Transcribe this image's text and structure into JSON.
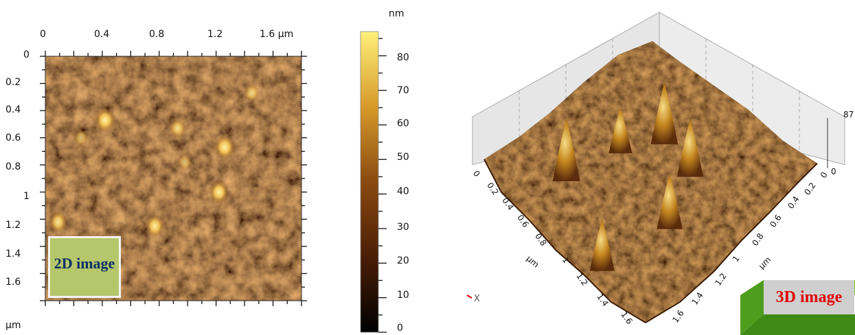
{
  "chart_data": [
    {
      "type": "heatmap",
      "label": "2D image",
      "x_ticks": [
        "0",
        "0.4",
        "0.8",
        "1.2",
        "1.6 µm"
      ],
      "y_ticks": [
        "0",
        "0.2",
        "0.4",
        "0.6",
        "0.8",
        "1",
        "1.2",
        "1.4",
        "1.6"
      ],
      "y_unit": "µm",
      "xlim": [
        0,
        1.8
      ],
      "ylim": [
        0,
        1.8
      ],
      "colorbar": {
        "unit": "nm",
        "ticks": [
          "0",
          "10",
          "20",
          "30",
          "40",
          "50",
          "60",
          "70",
          "80"
        ],
        "range": [
          0,
          87
        ]
      },
      "features": [
        {
          "x": 0.42,
          "y": 0.47,
          "height": 80
        },
        {
          "x": 1.26,
          "y": 0.67,
          "height": 78
        },
        {
          "x": 1.22,
          "y": 1.0,
          "height": 72
        },
        {
          "x": 0.77,
          "y": 1.25,
          "height": 68
        },
        {
          "x": 0.09,
          "y": 1.22,
          "height": 62
        },
        {
          "x": 0.93,
          "y": 0.53,
          "height": 52
        },
        {
          "x": 1.45,
          "y": 0.27,
          "height": 48
        },
        {
          "x": 0.25,
          "y": 0.6,
          "height": 42
        },
        {
          "x": 0.98,
          "y": 0.78,
          "height": 40
        }
      ]
    },
    {
      "type": "surface",
      "label": "3D image",
      "left_axis_ticks": [
        "0",
        "0.2",
        "0.4",
        "0.6",
        "0.8",
        "1",
        "1.2",
        "1.4",
        "1.6"
      ],
      "right_axis_ticks": [
        "0",
        "0.2",
        "0.4",
        "0.6",
        "0.8",
        "1",
        "1.2",
        "1.4",
        "1.6"
      ],
      "axis_unit": "µm",
      "z_ticks": [
        "0",
        "87"
      ],
      "origin_label": "X"
    }
  ]
}
